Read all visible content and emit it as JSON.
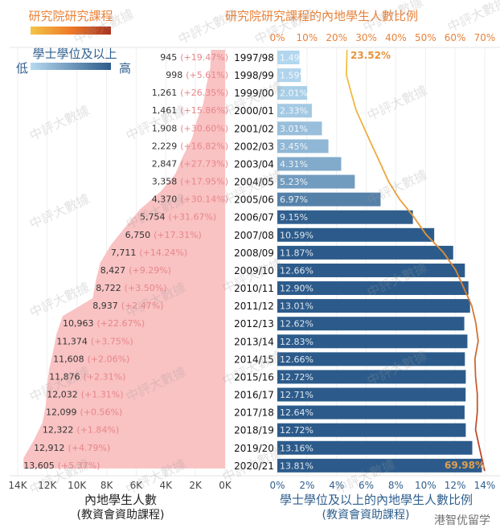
{
  "legend": {
    "graduate_title": "研究院研究課程",
    "bachelor_title": "學士學位及以上",
    "low_label": "低",
    "high_label": "高"
  },
  "watermark": "中評大數據",
  "corner_watermark": "港智优留学",
  "colors": {
    "area": "#f9c2c3",
    "pct_label": "#e8868a",
    "bar_light": "#a9d0ec",
    "bar_dark": "#2c5b8b",
    "line_start": "#f3c445",
    "line_end": "#b8402a",
    "title_orange": "#e8823a",
    "title_blue": "#2f5f8e"
  },
  "chart_data": [
    {
      "type": "area",
      "orientation": "horizontal-reversed",
      "xlabel": "內地學生人數",
      "xlabel_sub": "(教資會資助課程)",
      "xlim": [
        14000,
        0
      ],
      "xticks": [
        "14K",
        "12K",
        "10K",
        "8K",
        "6K",
        "4K",
        "2K",
        "0K"
      ],
      "categories": [
        "1997/98",
        "1998/99",
        "1999/00",
        "2000/01",
        "2001/02",
        "2002/03",
        "2003/04",
        "2004/05",
        "2005/06",
        "2006/07",
        "2007/08",
        "2008/09",
        "2009/10",
        "2010/11",
        "2011/12",
        "2012/13",
        "2013/14",
        "2014/15",
        "2015/16",
        "2016/17",
        "2017/18",
        "2018/19",
        "2019/20",
        "2020/21"
      ],
      "values": [
        945,
        998,
        1261,
        1461,
        1908,
        2229,
        2847,
        3358,
        4370,
        5754,
        6750,
        7711,
        8427,
        8722,
        8937,
        10963,
        11374,
        11608,
        11876,
        12032,
        12099,
        12322,
        12912,
        13605
      ],
      "value_labels": [
        "945",
        "998",
        "1,261",
        "1,461",
        "1,908",
        "2,229",
        "2,847",
        "3,358",
        "4,370",
        "5,754",
        "6,750",
        "7,711",
        "8,427",
        "8,722",
        "8,937",
        "10,963",
        "11,374",
        "11,608",
        "11,876",
        "12,032",
        "12,099",
        "12,322",
        "12,912",
        "13,605"
      ],
      "growth_labels": [
        "(+19.47%)",
        "(+5.61%)",
        "(+26.35%)",
        "(+15.86%)",
        "(+30.60%)",
        "(+16.82%)",
        "(+27.73%)",
        "(+17.95%)",
        "(+30.14%)",
        "(+31.67%)",
        "(+17.31%)",
        "(+14.24%)",
        "(+9.29%)",
        "(+3.50%)",
        "(+2.47%)",
        "(+22.67%)",
        "(+3.75%)",
        "(+2.06%)",
        "(+2.31%)",
        "(+1.31%)",
        "(+0.56%)",
        "(+1.84%)",
        "(+4.79%)",
        "(+5.37%)"
      ],
      "grid": true
    },
    {
      "type": "bar",
      "orientation": "horizontal",
      "xlabel": "學士學位及以上的內地學生人數比例",
      "xlabel_sub": "(教資會資助課程)",
      "xlim": [
        0,
        14
      ],
      "xticks": [
        "0%",
        "2%",
        "4%",
        "6%",
        "8%",
        "10%",
        "12%",
        "14%"
      ],
      "values": [
        1.49,
        1.59,
        2.01,
        2.33,
        3.01,
        3.45,
        4.31,
        5.23,
        6.97,
        9.15,
        10.59,
        11.87,
        12.66,
        12.9,
        13.01,
        12.62,
        12.83,
        12.66,
        12.72,
        12.71,
        12.64,
        12.72,
        13.16,
        13.81
      ],
      "value_labels": [
        "1.49%",
        "1.59%",
        "2.01%",
        "2.33%",
        "3.01%",
        "3.45%",
        "4.31%",
        "5.23%",
        "6.97%",
        "9.15%",
        "10.59%",
        "11.87%",
        "12.66%",
        "12.90%",
        "13.01%",
        "12.62%",
        "12.83%",
        "12.66%",
        "12.72%",
        "12.71%",
        "12.64%",
        "12.72%",
        "13.16%",
        "13.81%"
      ],
      "color_scale": "light-to-dark blue by value",
      "grid": true
    },
    {
      "type": "line",
      "title": "研究院研究課程的內地學生人數比例",
      "xlim": [
        0,
        70
      ],
      "xticks": [
        "0%",
        "10%",
        "20%",
        "30%",
        "40%",
        "50%",
        "60%",
        "70%"
      ],
      "axis_position": "top",
      "values": [
        23.52,
        23.3,
        24.9,
        26.6,
        29.3,
        32.0,
        34.8,
        37.5,
        41.2,
        46.0,
        50.2,
        56.0,
        60.2,
        62.9,
        65.6,
        67.0,
        67.8,
        66.7,
        66.9,
        67.5,
        67.5,
        66.9,
        68.2,
        69.98
      ],
      "annotations": [
        "23.52%",
        "69.98%"
      ]
    }
  ]
}
